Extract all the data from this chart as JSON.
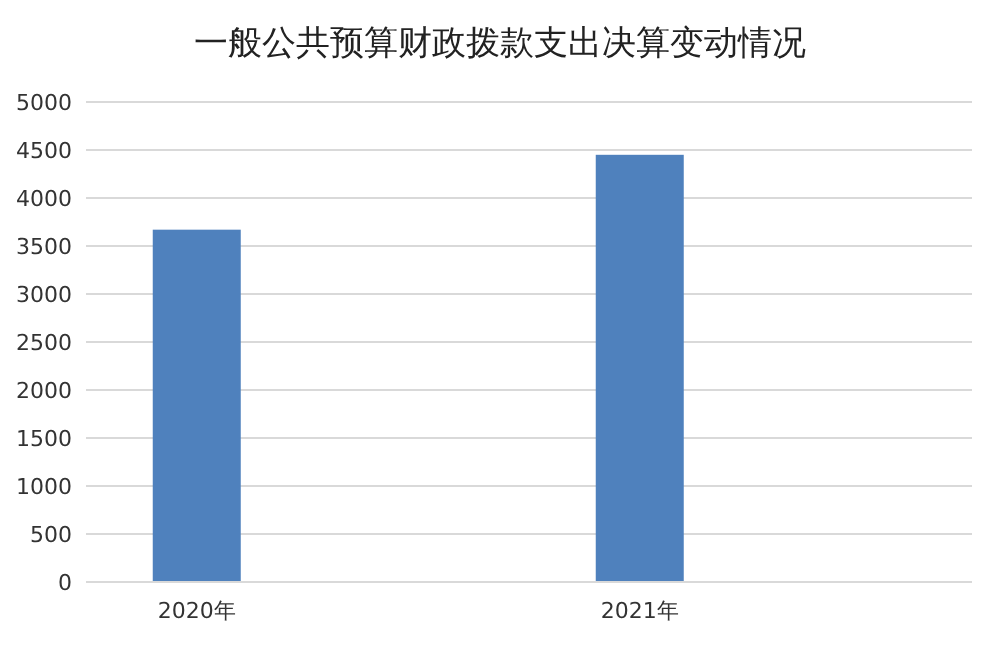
{
  "chart_data": {
    "type": "bar",
    "title": "一般公共预算财政拨款支出决算变动情况",
    "categories": [
      "2020年",
      "2021年"
    ],
    "values": [
      3670,
      4450
    ],
    "color": "#4f81bd",
    "ylim": [
      0,
      5000
    ],
    "yticks": [
      0,
      500,
      1000,
      1500,
      2000,
      2500,
      3000,
      3500,
      4000,
      4500,
      5000
    ],
    "grid": "y",
    "legend": false
  }
}
